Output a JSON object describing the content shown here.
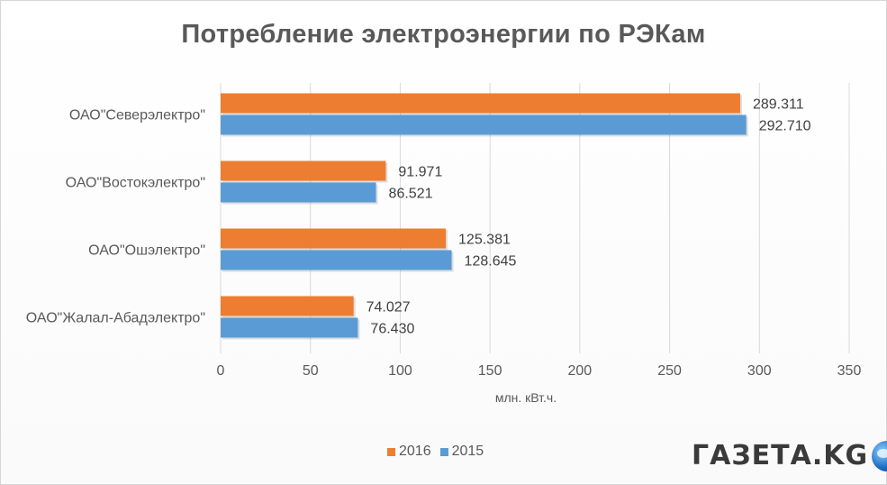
{
  "chart_data": {
    "type": "bar",
    "orientation": "horizontal",
    "title": "Потребление электроэнергии по РЭКам",
    "xlabel": "млн. кВт.ч.",
    "ylabel": "",
    "xlim": [
      0,
      350
    ],
    "ticks": [
      "0",
      "50",
      "100",
      "150",
      "200",
      "250",
      "300",
      "350"
    ],
    "grid": true,
    "legend_position": "bottom",
    "categories": [
      "ОАО\"Северэлектро\"",
      "ОАО\"Востокэлектро\"",
      "ОАО\"Ошэлектро\"",
      "ОАО\"Жалал-Абадэлектро\""
    ],
    "series": [
      {
        "name": "2016",
        "color": "#ed7d31",
        "values": [
          289.311,
          91.971,
          125.381,
          74.027
        ],
        "labels": [
          "289.311",
          "91.971",
          "125.381",
          "74.027"
        ]
      },
      {
        "name": "2015",
        "color": "#5b9bd5",
        "values": [
          292.71,
          86.521,
          128.645,
          76.43
        ],
        "labels": [
          "292.710",
          "86.521",
          "128.645",
          "76.430"
        ]
      }
    ]
  },
  "logo": {
    "text": "ГАЗЕТА.KG",
    "icon": "globe-icon"
  }
}
